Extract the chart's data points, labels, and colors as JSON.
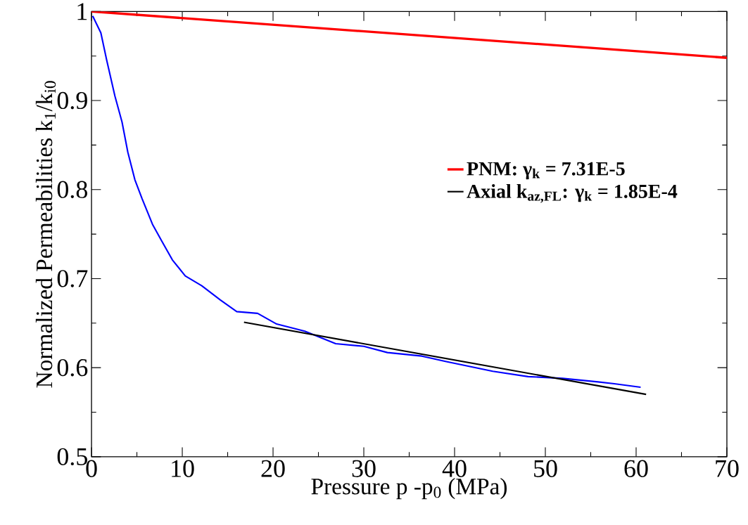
{
  "chart_data": {
    "type": "line",
    "xlabel": "Pressure p -p$_{0}$ (MPa)",
    "ylabel": "Normalized Permeabilities k$_{1}$/k$_{i0}$",
    "xlim": [
      0,
      70
    ],
    "ylim": [
      0.5,
      1
    ],
    "xticks": [
      0,
      10,
      20,
      30,
      40,
      50,
      60,
      70
    ],
    "yticks": [
      0.5,
      0.6,
      0.7,
      0.8,
      0.9,
      1
    ],
    "legend": "right",
    "series": [
      {
        "color": "#0000ff",
        "x": [
          0.13,
          1.03,
          1.68,
          2.58,
          3.36,
          4.0,
          4.78,
          5.56,
          6.72,
          7.75,
          8.91,
          10.33,
          12.15,
          14.2,
          16.0,
          18.3,
          20.4,
          23.5,
          26.9,
          30.0,
          32.6,
          36.4,
          39.0,
          44.2,
          48.1,
          51.9,
          55.8,
          57.6,
          60.5
        ],
        "values": [
          0.995,
          0.976,
          0.945,
          0.905,
          0.876,
          0.842,
          0.811,
          0.79,
          0.761,
          0.742,
          0.721,
          0.703,
          0.692,
          0.676,
          0.663,
          0.661,
          0.649,
          0.641,
          0.627,
          0.624,
          0.617,
          0.613,
          0.607,
          0.596,
          0.59,
          0.588,
          0.584,
          0.582,
          0.578
        ]
      },
      {
        "name": "PNM: γ$_{k}$ = 7.31E-5",
        "color": "#ff0000",
        "x": [
          0,
          70
        ],
        "values": [
          1,
          0.948
        ]
      },
      {
        "name": "Axial k$_{az,FL}$: γ$_{k}$ = 1.85E-4",
        "color": "#000000",
        "x": [
          16.8,
          61.1
        ],
        "values": [
          0.651,
          0.57
        ]
      }
    ]
  }
}
